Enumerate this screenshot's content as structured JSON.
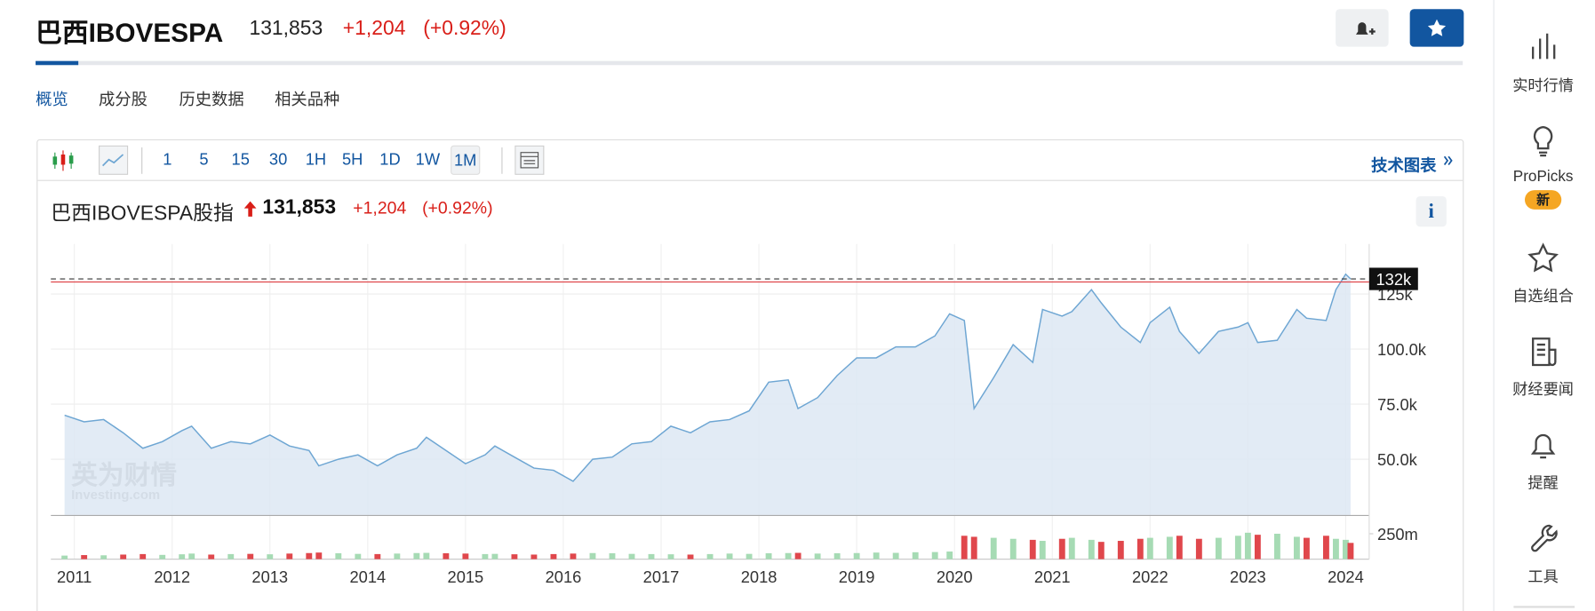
{
  "header": {
    "title": "巴西IBOVESPA",
    "price": "131,853",
    "change": "+1,204",
    "change_pct": "(+0.92%)"
  },
  "tabs": [
    "概览",
    "成分股",
    "历史数据",
    "相关品种"
  ],
  "toolbar": {
    "intervals": [
      "1",
      "5",
      "15",
      "30",
      "1H",
      "5H",
      "1D",
      "1W",
      "1M"
    ],
    "active": 8,
    "technical_chart": "技术图表"
  },
  "chart_header": {
    "name": "巴西IBOVESPA股指",
    "price": "131,853",
    "change": "+1,204",
    "change_pct": "(+0.92%)"
  },
  "watermark": {
    "brand": "英为财情",
    "site": "Investing.com"
  },
  "sidebar": [
    {
      "label": "实时行情"
    },
    {
      "label": "ProPicks",
      "badge": "新"
    },
    {
      "label": "自选组合"
    },
    {
      "label": "财经要闻"
    },
    {
      "label": "提醒"
    },
    {
      "label": "工具"
    }
  ],
  "chart_data": {
    "type": "line",
    "x": [
      2010.9,
      2011.1,
      2011.3,
      2011.5,
      2011.7,
      2011.9,
      2012.1,
      2012.2,
      2012.4,
      2012.6,
      2012.8,
      2013.0,
      2013.2,
      2013.4,
      2013.5,
      2013.7,
      2013.9,
      2014.1,
      2014.3,
      2014.5,
      2014.6,
      2014.8,
      2015.0,
      2015.2,
      2015.3,
      2015.5,
      2015.7,
      2015.9,
      2016.1,
      2016.3,
      2016.5,
      2016.7,
      2016.9,
      2017.1,
      2017.3,
      2017.5,
      2017.7,
      2017.9,
      2018.1,
      2018.3,
      2018.4,
      2018.6,
      2018.8,
      2019.0,
      2019.2,
      2019.4,
      2019.6,
      2019.8,
      2019.95,
      2020.1,
      2020.2,
      2020.4,
      2020.6,
      2020.8,
      2020.9,
      2021.1,
      2021.2,
      2021.4,
      2021.5,
      2021.7,
      2021.9,
      2022.0,
      2022.2,
      2022.3,
      2022.5,
      2022.7,
      2022.9,
      2023.0,
      2023.1,
      2023.3,
      2023.5,
      2023.6,
      2023.8,
      2023.9,
      2024.0,
      2024.05
    ],
    "values": [
      70,
      67,
      68,
      62,
      55,
      58,
      63,
      65,
      55,
      58,
      57,
      61,
      56,
      54,
      47,
      50,
      52,
      47,
      52,
      55,
      60,
      54,
      48,
      52,
      56,
      51,
      46,
      45,
      40,
      50,
      51,
      57,
      58,
      65,
      62,
      67,
      68,
      72,
      85,
      86,
      73,
      78,
      88,
      96,
      96,
      101,
      101,
      106,
      116,
      113,
      73,
      87,
      102,
      94,
      118,
      115,
      117,
      127,
      121,
      110,
      103,
      112,
      119,
      108,
      98,
      108,
      110,
      112,
      103,
      104,
      118,
      114,
      113,
      127,
      134,
      131.853
    ],
    "color": "#6ea6d3",
    "fill": "#dde8f3",
    "xlim": [
      2010.76,
      2024.24
    ],
    "xticks": [
      2011,
      2012,
      2013,
      2014,
      2015,
      2016,
      2017,
      2018,
      2019,
      2020,
      2021,
      2022,
      2023,
      2024
    ],
    "ylim": [
      24.5,
      147.7
    ],
    "yticks": [
      {
        "value": 50,
        "label": "50.0k"
      },
      {
        "value": 75,
        "label": "75.0k"
      },
      {
        "value": 100,
        "label": "100.0k"
      },
      {
        "value": 125,
        "label": "125k"
      }
    ],
    "last_price": {
      "value": 131.853,
      "label": "132k"
    },
    "grid": true,
    "volume": {
      "axis": "y2",
      "values": [
        35,
        40,
        38,
        45,
        50,
        42,
        48,
        55,
        45,
        50,
        52,
        48,
        55,
        60,
        65,
        58,
        52,
        50,
        55,
        60,
        62,
        58,
        55,
        50,
        52,
        48,
        45,
        50,
        55,
        60,
        58,
        52,
        50,
        48,
        45,
        50,
        55,
        52,
        58,
        60,
        62,
        55,
        58,
        60,
        65,
        62,
        68,
        70,
        75,
        230,
        220,
        210,
        200,
        190,
        180,
        200,
        210,
        190,
        170,
        180,
        200,
        210,
        220,
        230,
        200,
        210,
        230,
        260,
        240,
        250,
        220,
        210,
        230,
        200,
        190,
        160
      ],
      "up_color": "#a6dbb4",
      "down_color": "#e0474c"
    },
    "y2lim": [
      0,
      420
    ],
    "y2ticks": [
      {
        "value": 250,
        "label": "250m"
      }
    ]
  }
}
